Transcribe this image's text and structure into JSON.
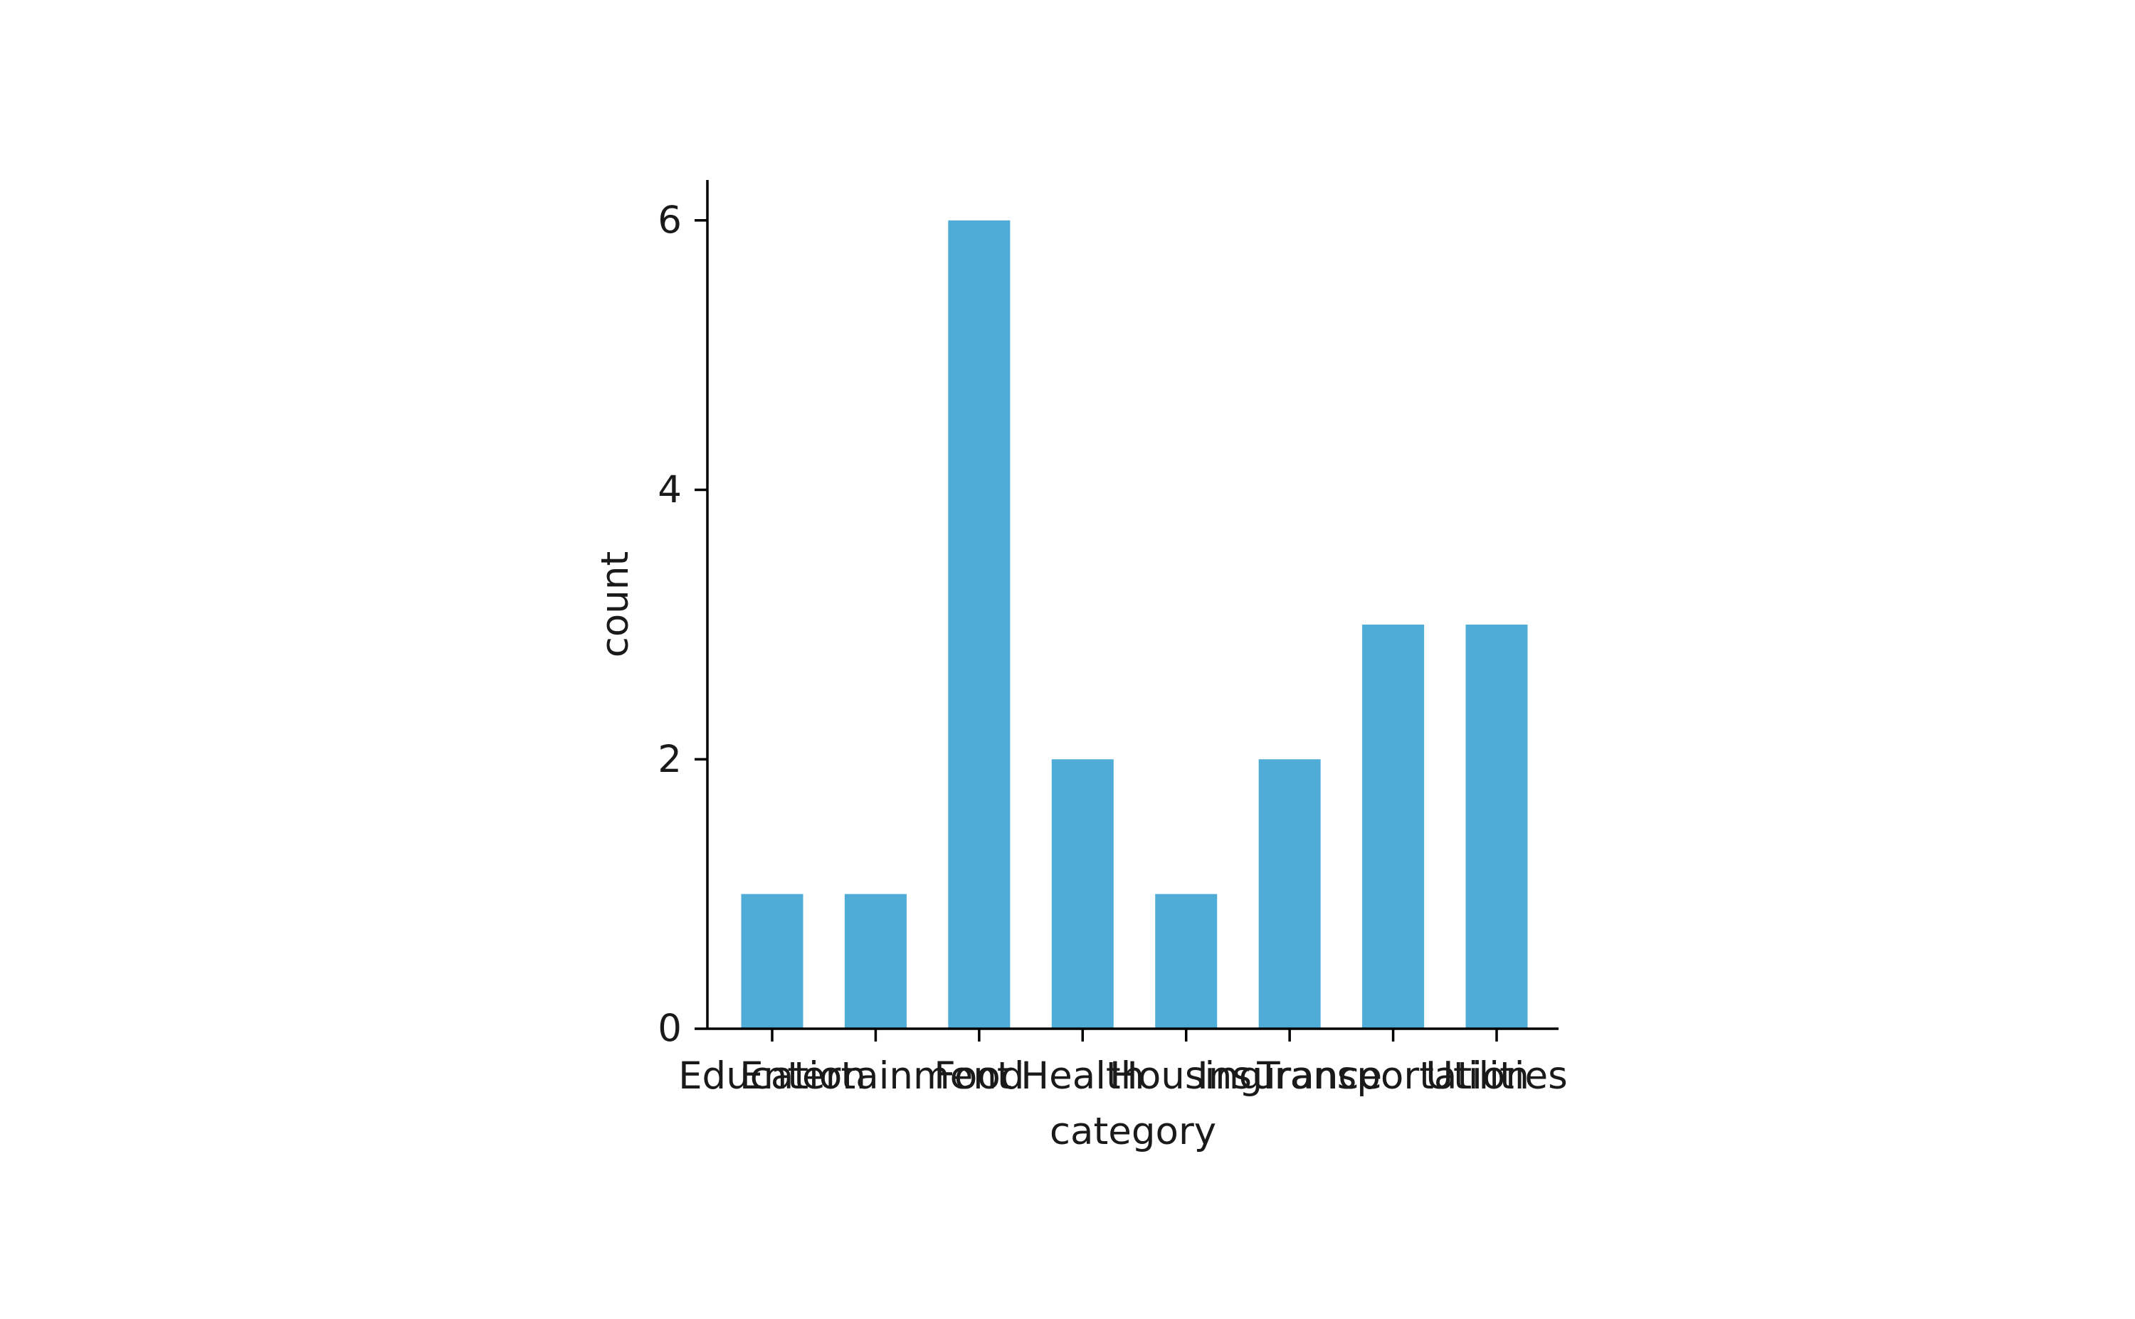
{
  "chart_data": {
    "type": "bar",
    "categories": [
      "Education",
      "Entertainment",
      "Food",
      "Health",
      "Housing",
      "Insurance",
      "Transportation",
      "Utilities"
    ],
    "values": [
      1,
      1,
      6,
      2,
      1,
      2,
      3,
      3
    ],
    "title": "",
    "xlabel": "category",
    "ylabel": "count",
    "ylim": [
      0,
      6.3
    ],
    "yticks": [
      0,
      2,
      4,
      6
    ],
    "grid": false,
    "legend": "none",
    "bar_color": "#4eacd7"
  }
}
